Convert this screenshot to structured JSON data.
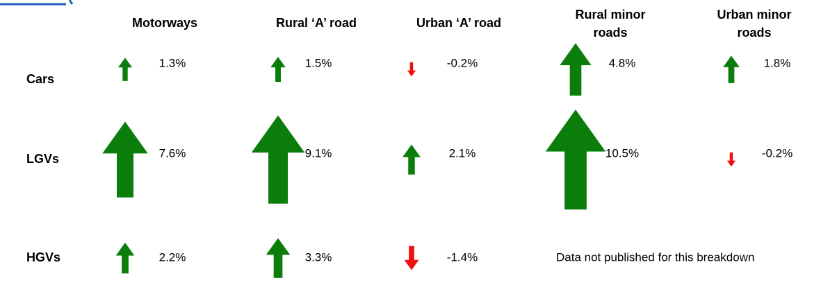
{
  "table": {
    "columns": [
      "Motorways",
      "Rural ‘A’ road",
      "Urban ‘A’ road",
      "Rural minor roads",
      "Urban minor roads"
    ],
    "rows": [
      {
        "label": "Cars",
        "cells": [
          "1.3%",
          "1.5%",
          "-0.2%",
          "4.8%",
          "1.8%"
        ]
      },
      {
        "label": "LGVs",
        "cells": [
          "7.6%",
          "9.1%",
          "2.1%",
          "10.5%",
          "-0.2%"
        ]
      },
      {
        "label": "HGVs",
        "cells": [
          "2.2%",
          "3.3%",
          "-1.4%"
        ],
        "note": "Data not published for this breakdown"
      }
    ]
  }
}
